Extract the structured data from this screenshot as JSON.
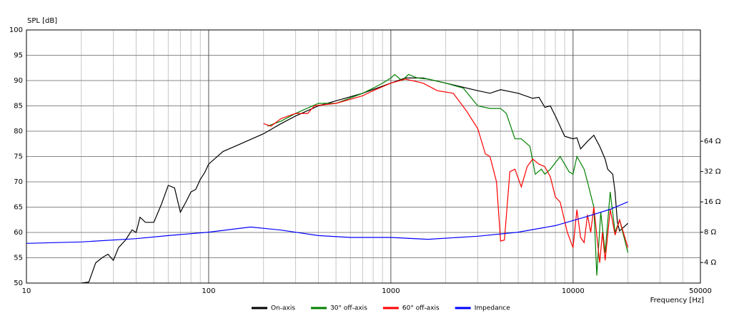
{
  "chart_data": {
    "type": "line",
    "y_label": "SPL [dB]",
    "x_label": "Frequency [Hz]",
    "xlog": true,
    "xlim": [
      10,
      50000
    ],
    "xticks": [
      10,
      100,
      1000,
      10000,
      50000
    ],
    "x_minor_ticks": [
      20,
      30,
      40,
      50,
      60,
      70,
      80,
      90,
      200,
      300,
      400,
      500,
      600,
      700,
      800,
      900,
      2000,
      3000,
      4000,
      5000,
      6000,
      7000,
      8000,
      9000,
      20000,
      30000,
      40000
    ],
    "ylim": [
      50,
      100
    ],
    "yticks": [
      50,
      55,
      60,
      65,
      70,
      75,
      80,
      85,
      90,
      95,
      100
    ],
    "y2log": true,
    "y2lim": [
      2.5,
      815
    ],
    "y2ticks": [
      {
        "value": 4,
        "label": "4 Ω"
      },
      {
        "value": 8,
        "label": "8 Ω"
      },
      {
        "value": 16,
        "label": "16 Ω"
      },
      {
        "value": 32,
        "label": "32 Ω"
      },
      {
        "value": 64,
        "label": "64 Ω"
      }
    ],
    "grid": true,
    "legend": "bottom",
    "series": [
      {
        "name": "On-axis",
        "color": "#000000",
        "x": [
          20,
          22,
          24,
          26,
          28,
          30,
          32,
          35,
          38,
          40,
          42,
          45,
          50,
          55,
          60,
          65,
          70,
          75,
          80,
          85,
          90,
          95,
          100,
          120,
          150,
          200,
          250,
          300,
          400,
          500,
          700,
          1000,
          1200,
          1500,
          2000,
          3000,
          3500,
          4000,
          5000,
          6000,
          6500,
          7000,
          7500,
          8000,
          9000,
          10000,
          10500,
          11000,
          12000,
          13000,
          14000,
          15000,
          15500,
          16500,
          17000,
          17500,
          18000,
          20000
        ],
        "values": [
          50,
          50.2,
          54,
          55,
          55.7,
          54.5,
          57,
          58.5,
          60.5,
          60,
          63,
          62,
          62,
          65.5,
          69.3,
          68.8,
          64,
          66,
          68,
          68.5,
          70.5,
          71.8,
          73.5,
          76,
          77.5,
          79.5,
          81.5,
          83,
          85,
          86,
          87.5,
          89.5,
          90.5,
          90.5,
          89.5,
          88,
          87.5,
          88.2,
          87.5,
          86.5,
          86.7,
          84.7,
          85,
          83,
          79,
          78.5,
          78.7,
          76.5,
          78,
          79.2,
          77,
          74.5,
          72.5,
          71.5,
          68,
          62,
          60.3,
          61.8
        ]
      },
      {
        "name": "30° off-axis",
        "color": "#008000",
        "x": [
          210,
          250,
          300,
          400,
          500,
          700,
          800,
          900,
          1000,
          1050,
          1150,
          1250,
          1400,
          1600,
          2000,
          2500,
          3000,
          3500,
          4000,
          4300,
          4800,
          5200,
          5800,
          6200,
          6700,
          7000,
          7500,
          8500,
          9500,
          10000,
          10500,
          11500,
          12000,
          13000,
          13500,
          14200,
          15000,
          16000,
          17000,
          18000,
          20000
        ],
        "values": [
          81,
          82,
          83.5,
          85.5,
          85.5,
          87.5,
          88.5,
          89.5,
          90.5,
          91.2,
          90,
          91.2,
          90.5,
          90.3,
          89.5,
          88.5,
          85,
          84.5,
          84.5,
          83.5,
          78.5,
          78.5,
          77,
          71.5,
          72.5,
          71.5,
          72.5,
          75,
          72,
          71.5,
          75,
          72.5,
          70,
          65,
          51.5,
          64,
          56,
          68,
          60,
          62.5,
          56
        ]
      },
      {
        "name": "60° off-axis",
        "color": "#ff0000",
        "x": [
          200,
          220,
          250,
          300,
          350,
          380,
          500,
          700,
          800,
          1000,
          1200,
          1500,
          1800,
          2200,
          2600,
          3000,
          3300,
          3500,
          3800,
          4000,
          4200,
          4500,
          4800,
          5200,
          5600,
          6000,
          6500,
          7000,
          7500,
          8000,
          8500,
          9300,
          10000,
          10500,
          11000,
          11500,
          12000,
          12500,
          13000,
          14000,
          14500,
          15000,
          16000,
          16500,
          17000,
          18000,
          20000
        ],
        "values": [
          81.5,
          81,
          82.5,
          83.5,
          83.5,
          85,
          85.5,
          87,
          88,
          89.5,
          90.3,
          89.5,
          88,
          87.5,
          84,
          80.5,
          75.5,
          75,
          70,
          58.3,
          58.5,
          72,
          72.5,
          69,
          73,
          74.5,
          73.5,
          73,
          71,
          67,
          66,
          60,
          57,
          64.5,
          59,
          58,
          63.5,
          60,
          65,
          54,
          60,
          54.5,
          64.5,
          62,
          59.5,
          62.5,
          57
        ]
      },
      {
        "name": "Impedance",
        "color": "#0000ff",
        "axis": "y2",
        "x": [
          10,
          20,
          40,
          60,
          100,
          170,
          250,
          400,
          600,
          1000,
          1600,
          3000,
          5000,
          8000,
          12000,
          16000,
          20000
        ],
        "values": [
          6.2,
          6.4,
          6.9,
          7.4,
          8.0,
          9.0,
          8.4,
          7.4,
          7.1,
          7.1,
          6.8,
          7.3,
          8.0,
          9.3,
          11.5,
          13.5,
          16
        ]
      }
    ]
  }
}
